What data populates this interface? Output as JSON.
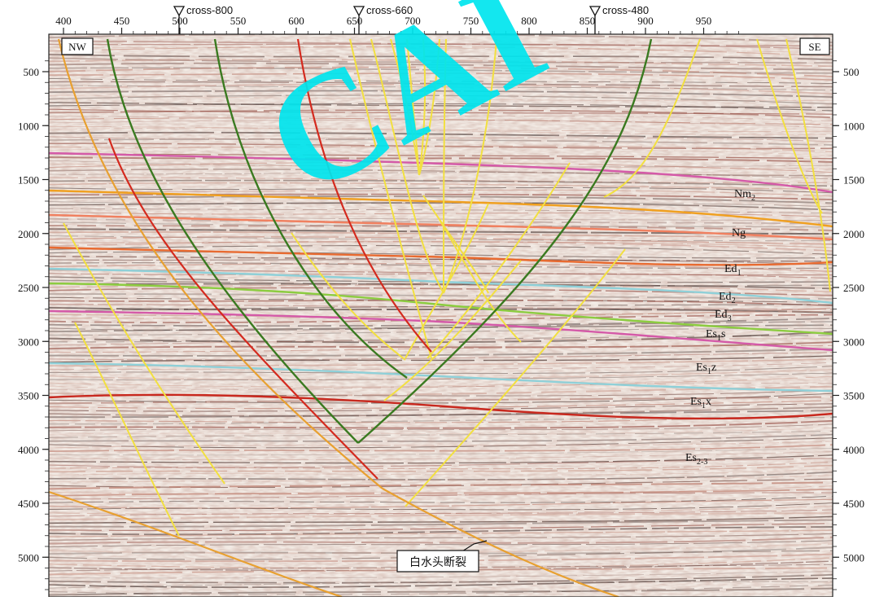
{
  "corner_left": "NW",
  "corner_right": "SE",
  "watermark": "CAI",
  "fault_name": "白水头断裂",
  "x_ticks": [
    {
      "v": 400,
      "label": "400"
    },
    {
      "v": 450,
      "label": "450"
    },
    {
      "v": 500,
      "label": "500"
    },
    {
      "v": 550,
      "label": "550"
    },
    {
      "v": 600,
      "label": "600"
    },
    {
      "v": 650,
      "label": "650"
    },
    {
      "v": 700,
      "label": "700"
    },
    {
      "v": 750,
      "label": "750"
    },
    {
      "v": 800,
      "label": "800"
    },
    {
      "v": 850,
      "label": "850"
    },
    {
      "v": 900,
      "label": "900"
    },
    {
      "v": 950,
      "label": "950"
    }
  ],
  "y_ticks": [
    {
      "v": 500,
      "label": "500"
    },
    {
      "v": 1000,
      "label": "1000"
    },
    {
      "v": 1500,
      "label": "1500"
    },
    {
      "v": 2000,
      "label": "2000"
    },
    {
      "v": 2500,
      "label": "2500"
    },
    {
      "v": 3000,
      "label": "3000"
    },
    {
      "v": 3500,
      "label": "3500"
    },
    {
      "v": 4000,
      "label": "4000"
    },
    {
      "v": 4500,
      "label": "4500"
    },
    {
      "v": 5000,
      "label": "5000"
    }
  ],
  "cross_sections": [
    {
      "label": "cross-800"
    },
    {
      "label": "cross-660"
    },
    {
      "label": "cross-480"
    }
  ],
  "layers": [
    {
      "base": "Nm",
      "sub": "2",
      "tail": ""
    },
    {
      "base": "Ng",
      "sub": "",
      "tail": ""
    },
    {
      "base": "Ed",
      "sub": "1",
      "tail": ""
    },
    {
      "base": "Ed",
      "sub": "2",
      "tail": ""
    },
    {
      "base": "Ed",
      "sub": "3",
      "tail": ""
    },
    {
      "base": "Es",
      "sub": "1",
      "tail": "s"
    },
    {
      "base": "Es",
      "sub": "1",
      "tail": "z"
    },
    {
      "base": "Es",
      "sub": "1",
      "tail": "x"
    },
    {
      "base": "Es",
      "sub": "2-3",
      "tail": ""
    }
  ],
  "colors": {
    "horizon_magenta": "#d45aa8",
    "horizon_orange": "#f0a020",
    "horizon_salmon": "#f08060",
    "horizon_red_orange": "#e86a30",
    "horizon_cyan": "#8fd0d8",
    "horizon_green": "#8ccc40",
    "horizon_red": "#c8281e",
    "fault_yellow": "#f2e040",
    "fault_orange": "#e8a030",
    "fault_red": "#d42a1e",
    "fault_green": "#3a7a20",
    "watermark": "#00e5ee"
  }
}
